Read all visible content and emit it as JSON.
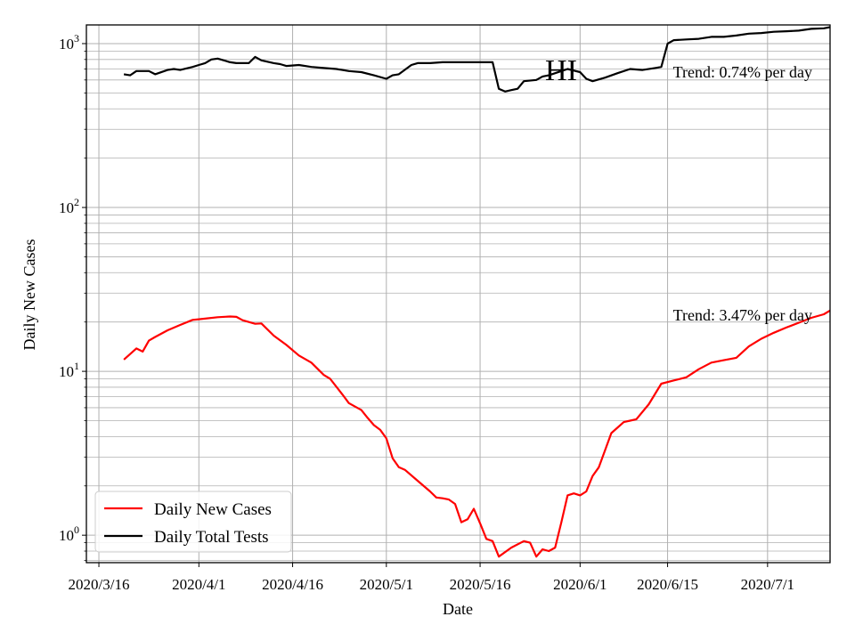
{
  "chart_data": {
    "type": "line",
    "title": "HI",
    "xlabel": "Date",
    "ylabel": "Daily New Cases",
    "yscale": "log",
    "ylim": [
      0.68,
      1300
    ],
    "xlim": [
      "2020-03-14",
      "2020-07-11"
    ],
    "x_ticks": [
      "2020/3/16",
      "2020/4/1",
      "2020/4/16",
      "2020/5/1",
      "2020/5/16",
      "2020/6/1",
      "2020/6/15",
      "2020/7/1"
    ],
    "y_ticks": [
      "10^0",
      "10^1",
      "10^2",
      "10^3"
    ],
    "grid": true,
    "legend_position": "lower-left",
    "annotations": [
      "Trend: 0.74% per day",
      "Trend: 3.47% per day"
    ],
    "series": [
      {
        "name": "Daily New Cases",
        "color": "#ff0000",
        "x": [
          "2020-03-20",
          "2020-03-22",
          "2020-03-23",
          "2020-03-24",
          "2020-03-25",
          "2020-03-27",
          "2020-03-29",
          "2020-03-31",
          "2020-04-01",
          "2020-04-04",
          "2020-04-06",
          "2020-04-07",
          "2020-04-08",
          "2020-04-10",
          "2020-04-11",
          "2020-04-13",
          "2020-04-15",
          "2020-04-17",
          "2020-04-19",
          "2020-04-21",
          "2020-04-22",
          "2020-04-24",
          "2020-04-25",
          "2020-04-27",
          "2020-04-28",
          "2020-04-29",
          "2020-04-30",
          "2020-05-01",
          "2020-05-02",
          "2020-05-03",
          "2020-05-04",
          "2020-05-06",
          "2020-05-08",
          "2020-05-09",
          "2020-05-10",
          "2020-05-11",
          "2020-05-12",
          "2020-05-13",
          "2020-05-14",
          "2020-05-15",
          "2020-05-16",
          "2020-05-17",
          "2020-05-18",
          "2020-05-19",
          "2020-05-21",
          "2020-05-23",
          "2020-05-24",
          "2020-05-25",
          "2020-05-26",
          "2020-05-27",
          "2020-05-28",
          "2020-05-29",
          "2020-05-30",
          "2020-05-31",
          "2020-06-01",
          "2020-06-02",
          "2020-06-03",
          "2020-06-04",
          "2020-06-06",
          "2020-06-08",
          "2020-06-09",
          "2020-06-10",
          "2020-06-12",
          "2020-06-14",
          "2020-06-16",
          "2020-06-18",
          "2020-06-20",
          "2020-06-22",
          "2020-06-24",
          "2020-06-26",
          "2020-06-28",
          "2020-06-30",
          "2020-07-02",
          "2020-07-04",
          "2020-07-06",
          "2020-07-08",
          "2020-07-10",
          "2020-07-11"
        ],
        "values": [
          11.8,
          13.8,
          13.2,
          15.4,
          16.2,
          17.8,
          19.2,
          20.6,
          20.8,
          21.4,
          21.6,
          21.5,
          20.5,
          19.5,
          19.6,
          16.5,
          14.5,
          12.5,
          11.3,
          9.5,
          9.0,
          7.2,
          6.4,
          5.8,
          5.2,
          4.7,
          4.4,
          3.9,
          2.95,
          2.6,
          2.5,
          2.15,
          1.85,
          1.7,
          1.68,
          1.65,
          1.55,
          1.2,
          1.25,
          1.45,
          1.18,
          0.95,
          0.92,
          0.74,
          0.84,
          0.92,
          0.9,
          0.74,
          0.82,
          0.8,
          0.84,
          1.2,
          1.75,
          1.8,
          1.75,
          1.85,
          2.3,
          2.6,
          4.2,
          4.9,
          5.0,
          5.1,
          6.3,
          8.4,
          8.8,
          9.2,
          10.3,
          11.3,
          11.7,
          12.1,
          14.2,
          15.8,
          17.2,
          18.5,
          19.8,
          21.2,
          22.3,
          23.5
        ]
      },
      {
        "name": "Daily Total Tests",
        "color": "#000000",
        "x": [
          "2020-03-20",
          "2020-03-21",
          "2020-03-22",
          "2020-03-24",
          "2020-03-25",
          "2020-03-27",
          "2020-03-28",
          "2020-03-29",
          "2020-03-31",
          "2020-04-01",
          "2020-04-02",
          "2020-04-03",
          "2020-04-04",
          "2020-04-06",
          "2020-04-07",
          "2020-04-09",
          "2020-04-10",
          "2020-04-11",
          "2020-04-13",
          "2020-04-14",
          "2020-04-15",
          "2020-04-17",
          "2020-04-19",
          "2020-04-21",
          "2020-04-23",
          "2020-04-25",
          "2020-04-27",
          "2020-04-29",
          "2020-05-01",
          "2020-05-02",
          "2020-05-03",
          "2020-05-05",
          "2020-05-06",
          "2020-05-08",
          "2020-05-10",
          "2020-05-12",
          "2020-05-14",
          "2020-05-16",
          "2020-05-18",
          "2020-05-19",
          "2020-05-20",
          "2020-05-21",
          "2020-05-22",
          "2020-05-23",
          "2020-05-25",
          "2020-05-26",
          "2020-05-27",
          "2020-05-28",
          "2020-05-30",
          "2020-06-01",
          "2020-06-02",
          "2020-06-03",
          "2020-06-05",
          "2020-06-07",
          "2020-06-09",
          "2020-06-11",
          "2020-06-13",
          "2020-06-14",
          "2020-06-15",
          "2020-06-16",
          "2020-06-18",
          "2020-06-20",
          "2020-06-22",
          "2020-06-24",
          "2020-06-26",
          "2020-06-28",
          "2020-06-30",
          "2020-07-02",
          "2020-07-04",
          "2020-07-06",
          "2020-07-08",
          "2020-07-10",
          "2020-07-11"
        ],
        "values": [
          650,
          640,
          680,
          680,
          650,
          690,
          700,
          690,
          720,
          740,
          760,
          800,
          810,
          770,
          760,
          760,
          830,
          790,
          760,
          750,
          730,
          740,
          720,
          710,
          700,
          680,
          670,
          640,
          610,
          640,
          650,
          740,
          760,
          760,
          770,
          770,
          770,
          770,
          770,
          530,
          510,
          520,
          530,
          590,
          600,
          630,
          640,
          660,
          700,
          670,
          610,
          590,
          620,
          660,
          700,
          690,
          710,
          720,
          1000,
          1050,
          1060,
          1070,
          1100,
          1100,
          1120,
          1150,
          1160,
          1180,
          1190,
          1200,
          1230,
          1240,
          1260
        ]
      }
    ]
  }
}
